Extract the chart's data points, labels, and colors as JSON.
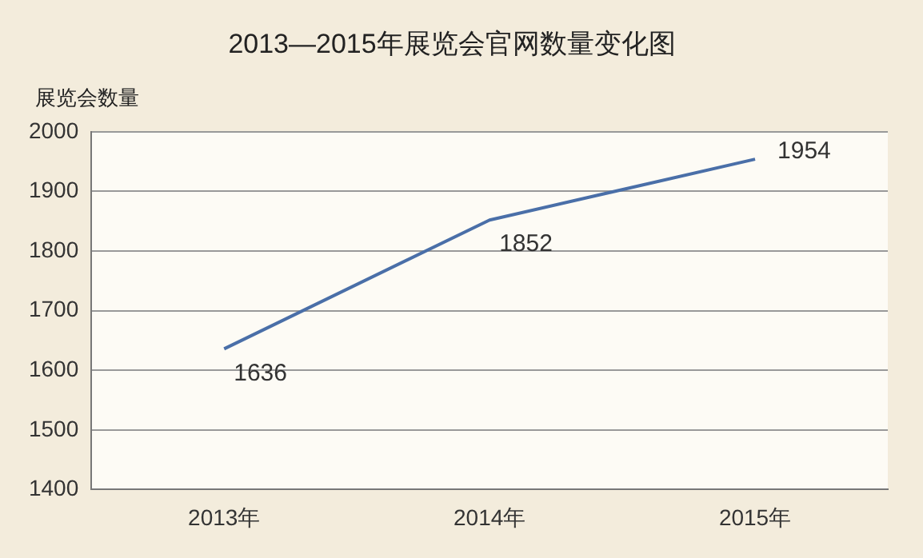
{
  "chart_data": {
    "type": "line",
    "title": "2013—2015年展览会官网数量变化图",
    "ylabel": "展览会数量",
    "categories": [
      "2013年",
      "2014年",
      "2015年"
    ],
    "values": [
      1636,
      1852,
      1954
    ],
    "color": "#4a6fa8",
    "ylim": [
      1400,
      2000
    ],
    "yticks": [
      1400,
      1500,
      1600,
      1700,
      1800,
      1900,
      2000
    ],
    "grid": "y",
    "data_labels": true,
    "marker": "none"
  }
}
